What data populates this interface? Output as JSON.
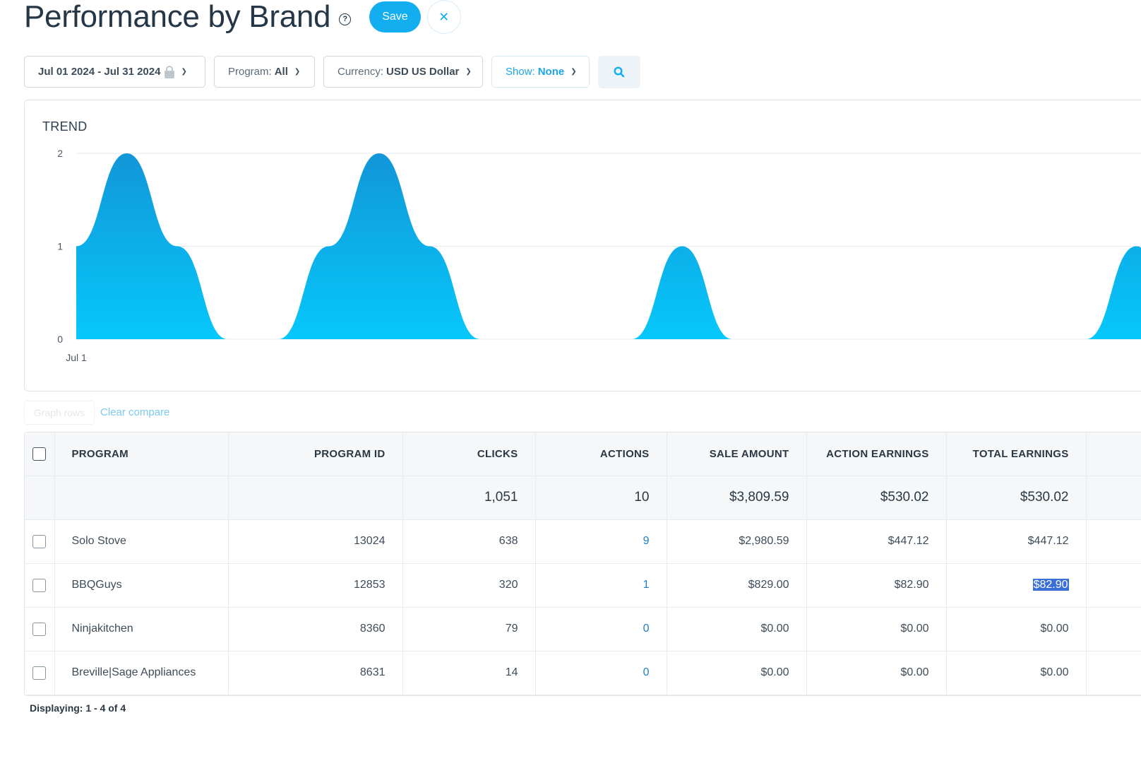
{
  "header": {
    "title": "Performance by Brand",
    "help_glyph": "?",
    "save_label": "Save",
    "close_glyph": "✕"
  },
  "filters": {
    "date_range": "Jul 01 2024 - Jul 31 2024",
    "program_label": "Program:",
    "program_value": "All",
    "currency_label": "Currency:",
    "currency_value": "USD US Dollar",
    "show_label": "Show:",
    "show_value": "None"
  },
  "chart_data": {
    "type": "area",
    "title": "TREND",
    "x_first_label": "Jul 1",
    "yticks": [
      0,
      1,
      2
    ],
    "ylim": [
      0,
      2
    ],
    "grid": true,
    "color": "#12aef0",
    "x": [
      1,
      2,
      3,
      4,
      5,
      6,
      7,
      8,
      9,
      10,
      11,
      12,
      13,
      14,
      15,
      16,
      17,
      18,
      19,
      20,
      21,
      22
    ],
    "values": [
      1,
      2,
      1,
      0,
      0,
      1,
      2,
      1,
      0,
      0,
      0,
      0,
      1,
      0,
      0,
      0,
      0,
      0,
      0,
      0,
      0,
      1
    ]
  },
  "controls": {
    "graph_rows": "Graph rows",
    "clear_compare": "Clear compare"
  },
  "table": {
    "headers": {
      "program": "PROGRAM",
      "program_id": "PROGRAM ID",
      "clicks": "CLICKS",
      "actions": "ACTIONS",
      "sale_amount": "SALE AMOUNT",
      "action_earnings": "ACTION EARNINGS",
      "total_earnings": "TOTAL EARNINGS"
    },
    "totals": {
      "clicks": "1,051",
      "actions": "10",
      "sale_amount": "$3,809.59",
      "action_earnings": "$530.02",
      "total_earnings": "$530.02"
    },
    "rows": [
      {
        "program": "Solo Stove",
        "program_id": "13024",
        "clicks": "638",
        "actions": "9",
        "sale_amount": "$2,980.59",
        "action_earnings": "$447.12",
        "total_earnings": "$447.12"
      },
      {
        "program": "BBQGuys",
        "program_id": "12853",
        "clicks": "320",
        "actions": "1",
        "sale_amount": "$829.00",
        "action_earnings": "$82.90",
        "total_earnings": "$82.90"
      },
      {
        "program": "Ninjakitchen",
        "program_id": "8360",
        "clicks": "79",
        "actions": "0",
        "sale_amount": "$0.00",
        "action_earnings": "$0.00",
        "total_earnings": "$0.00"
      },
      {
        "program": "Breville|Sage Appliances",
        "program_id": "8631",
        "clicks": "14",
        "actions": "0",
        "sale_amount": "$0.00",
        "action_earnings": "$0.00",
        "total_earnings": "$0.00"
      }
    ]
  },
  "pagination": {
    "displaying": "Displaying: 1 - 4 of 4"
  },
  "colors": {
    "accent": "#12aef0",
    "link": "#1f7fc4",
    "selection": "#3a6fd8"
  }
}
